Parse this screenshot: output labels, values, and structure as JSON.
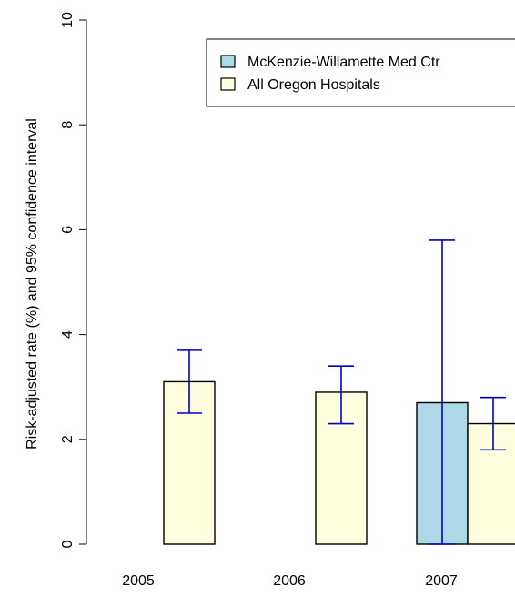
{
  "chart_data": {
    "type": "bar",
    "title": "",
    "xlabel": "",
    "ylabel": "Risk-adjusted rate (%) and 95% confidence interval",
    "ylim": [
      0,
      10
    ],
    "yticks": [
      "0",
      "2",
      "4",
      "6",
      "8",
      "10"
    ],
    "categories": [
      "2005",
      "2006",
      "2007"
    ],
    "grid": false,
    "legend_position": "top-right",
    "error_bar_color": "#0000cc",
    "series": [
      {
        "name": "McKenzie-Willamette Med Ctr",
        "color": "#add8e6",
        "values": [
          null,
          null,
          2.7
        ],
        "ci_low": [
          null,
          null,
          0.0
        ],
        "ci_high": [
          null,
          null,
          5.8
        ]
      },
      {
        "name": "All Oregon Hospitals",
        "color": "#ffffe0",
        "values": [
          3.1,
          2.9,
          2.3
        ],
        "ci_low": [
          2.5,
          2.3,
          1.8
        ],
        "ci_high": [
          3.7,
          3.4,
          2.8
        ]
      }
    ]
  }
}
